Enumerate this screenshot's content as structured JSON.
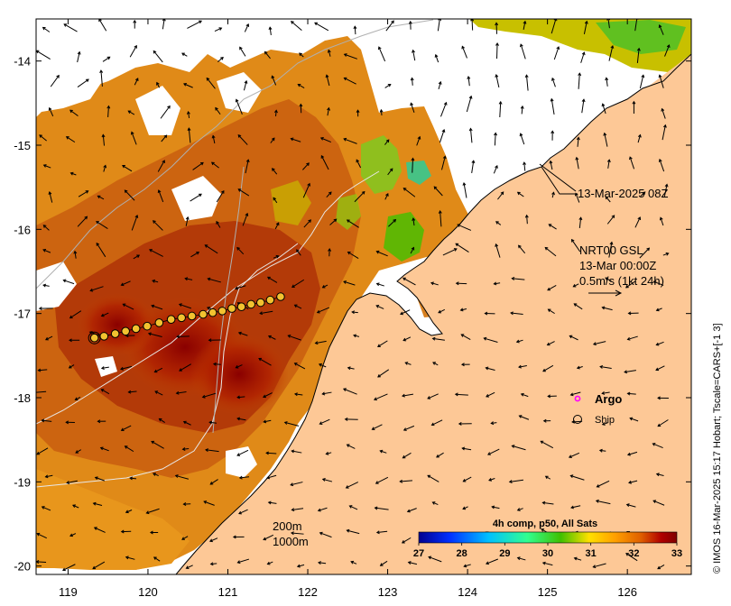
{
  "map": {
    "lon_range": [
      118.6,
      126.8
    ],
    "lat_range": [
      -20.1,
      -13.5
    ],
    "x_ticks": [
      119,
      120,
      121,
      122,
      123,
      124,
      125,
      126
    ],
    "y_ticks": [
      -14,
      -15,
      -16,
      -17,
      -18,
      -19,
      -20
    ],
    "land_color": "#fdc896",
    "shelf_color": "#cfcfcf"
  },
  "annotations": {
    "timestamp": "13-Mar-2025 08Z",
    "current_label": "NRT00 GSL",
    "current_time": "13-Mar 00:00Z",
    "current_scale": "0.5m/s (1kt 24h)"
  },
  "legend": {
    "argo_label": "Argo",
    "argo_color": "#ff00ff",
    "ship_label": "Ship",
    "contour_200": "200m",
    "contour_1000": "1000m"
  },
  "colorbar": {
    "title": "4h comp, p50, All Sats",
    "ticks": [
      27,
      28,
      29,
      30,
      31,
      32,
      33
    ],
    "range": [
      27,
      33
    ],
    "colors": [
      "#00008f",
      "#0030ff",
      "#00c0ff",
      "#30ff90",
      "#40c000",
      "#ffe000",
      "#ffa000",
      "#e06000",
      "#b00000",
      "#800000"
    ]
  },
  "credit": "© IMOS 16-Mar-2025 15:17 Hobart; Tscale=CARS+[-1 3]",
  "ship_track": [
    {
      "lon": 119.33,
      "lat": -17.29
    },
    {
      "lon": 119.45,
      "lat": -17.27
    },
    {
      "lon": 119.59,
      "lat": -17.24
    },
    {
      "lon": 119.72,
      "lat": -17.21
    },
    {
      "lon": 119.85,
      "lat": -17.18
    },
    {
      "lon": 119.99,
      "lat": -17.15
    },
    {
      "lon": 120.14,
      "lat": -17.11
    },
    {
      "lon": 120.29,
      "lat": -17.07
    },
    {
      "lon": 120.42,
      "lat": -17.05
    },
    {
      "lon": 120.55,
      "lat": -17.03
    },
    {
      "lon": 120.69,
      "lat": -17.01
    },
    {
      "lon": 120.81,
      "lat": -16.99
    },
    {
      "lon": 120.93,
      "lat": -16.97
    },
    {
      "lon": 121.05,
      "lat": -16.94
    },
    {
      "lon": 121.17,
      "lat": -16.92
    },
    {
      "lon": 121.29,
      "lat": -16.89
    },
    {
      "lon": 121.41,
      "lat": -16.87
    },
    {
      "lon": 121.53,
      "lat": -16.84
    },
    {
      "lon": 121.66,
      "lat": -16.8
    }
  ]
}
